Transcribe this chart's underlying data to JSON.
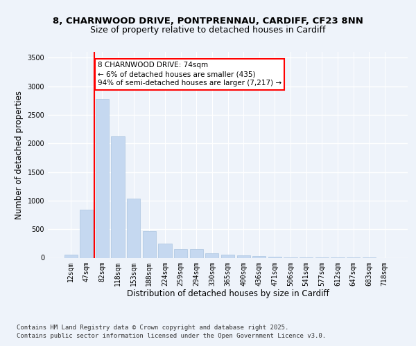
{
  "title_line1": "8, CHARNWOOD DRIVE, PONTPRENNAU, CARDIFF, CF23 8NN",
  "title_line2": "Size of property relative to detached houses in Cardiff",
  "xlabel": "Distribution of detached houses by size in Cardiff",
  "ylabel": "Number of detached properties",
  "categories": [
    "12sqm",
    "47sqm",
    "82sqm",
    "118sqm",
    "153sqm",
    "188sqm",
    "224sqm",
    "259sqm",
    "294sqm",
    "330sqm",
    "365sqm",
    "400sqm",
    "436sqm",
    "471sqm",
    "506sqm",
    "541sqm",
    "577sqm",
    "612sqm",
    "647sqm",
    "683sqm",
    "718sqm"
  ],
  "values": [
    55,
    840,
    2780,
    2120,
    1040,
    460,
    250,
    155,
    155,
    75,
    55,
    45,
    30,
    20,
    10,
    5,
    3,
    2,
    1,
    1,
    0
  ],
  "bar_color": "#c5d8f0",
  "bar_edgecolor": "#aac4e0",
  "marker_color": "red",
  "annotation_text": "8 CHARNWOOD DRIVE: 74sqm\n← 6% of detached houses are smaller (435)\n94% of semi-detached houses are larger (7,217) →",
  "annotation_box_edgecolor": "red",
  "annotation_box_facecolor": "white",
  "ylim": [
    0,
    3600
  ],
  "yticks": [
    0,
    500,
    1000,
    1500,
    2000,
    2500,
    3000,
    3500
  ],
  "footer_line1": "Contains HM Land Registry data © Crown copyright and database right 2025.",
  "footer_line2": "Contains public sector information licensed under the Open Government Licence v3.0.",
  "bg_color": "#eef3fa",
  "plot_bg_color": "#eef3fa",
  "grid_color": "#ffffff",
  "title_fontsize": 9.5,
  "subtitle_fontsize": 9,
  "axis_label_fontsize": 8.5,
  "tick_fontsize": 7,
  "footer_fontsize": 6.5,
  "annotation_fontsize": 7.5
}
